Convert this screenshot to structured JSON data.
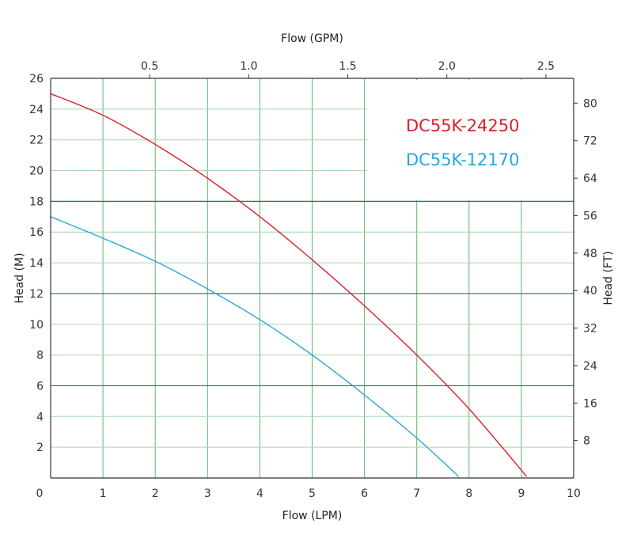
{
  "chart_data": {
    "type": "line",
    "xlabel": "Flow (LPM)",
    "x2label": "Flow (GPM)",
    "ylabel": "Head (M)",
    "y2label": "Head (FT)",
    "xlim": [
      0,
      10
    ],
    "ylim": [
      0,
      26
    ],
    "x2lim": [
      0,
      2.64
    ],
    "y2lim": [
      0,
      85.3
    ],
    "x_ticks": [
      1,
      2,
      3,
      4,
      5,
      6,
      7,
      8,
      9,
      10
    ],
    "y_ticks": [
      2,
      4,
      6,
      8,
      10,
      12,
      14,
      16,
      18,
      20,
      22,
      24,
      26
    ],
    "x2_ticks": [
      0.5,
      1.0,
      1.5,
      2.0,
      2.5
    ],
    "y2_ticks": [
      8,
      16,
      24,
      32,
      40,
      48,
      56,
      64,
      72,
      80
    ],
    "origin_label": "0",
    "grid": true,
    "legend_position": "top-right",
    "series": [
      {
        "name": "DC55K-24250",
        "color": "#d9222a",
        "points": [
          [
            0,
            25.0
          ],
          [
            1,
            23.6
          ],
          [
            2,
            21.7
          ],
          [
            3,
            19.5
          ],
          [
            4,
            17.0
          ],
          [
            5,
            14.2
          ],
          [
            6,
            11.2
          ],
          [
            7,
            8.0
          ],
          [
            8,
            4.5
          ],
          [
            9.1,
            0.1
          ]
        ]
      },
      {
        "name": "DC55K-12170",
        "color": "#29a8d9",
        "points": [
          [
            0,
            17.0
          ],
          [
            1,
            15.6
          ],
          [
            2,
            14.1
          ],
          [
            3,
            12.3
          ],
          [
            4,
            10.3
          ],
          [
            5,
            8.0
          ],
          [
            6,
            5.4
          ],
          [
            7,
            2.6
          ],
          [
            7.8,
            0.1
          ]
        ]
      }
    ]
  }
}
